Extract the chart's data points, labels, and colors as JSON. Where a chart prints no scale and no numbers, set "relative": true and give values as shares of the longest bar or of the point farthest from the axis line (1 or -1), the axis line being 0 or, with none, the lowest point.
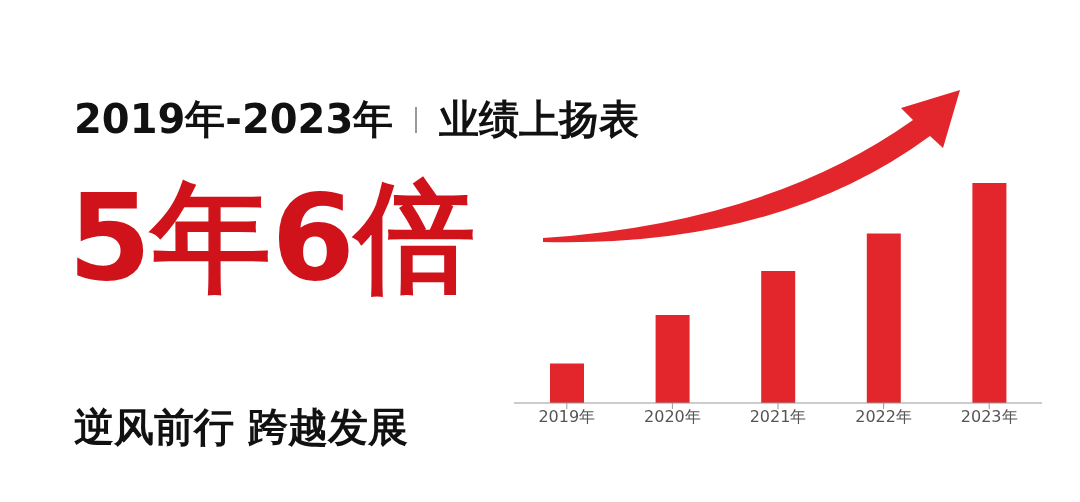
{
  "chart_data": {
    "type": "bar",
    "title": "2019年-2023年",
    "subtitle": "业绩上扬表",
    "annotations": [
      "5年6倍",
      "逆风前行 跨越发展"
    ],
    "categories": [
      "2019年",
      "2020年",
      "2021年",
      "2022年",
      "2023年"
    ],
    "values": [
      0.18,
      0.4,
      0.6,
      0.77,
      1
    ],
    "color": "#e3262b",
    "relative": true,
    "grid": false,
    "legend": false
  }
}
